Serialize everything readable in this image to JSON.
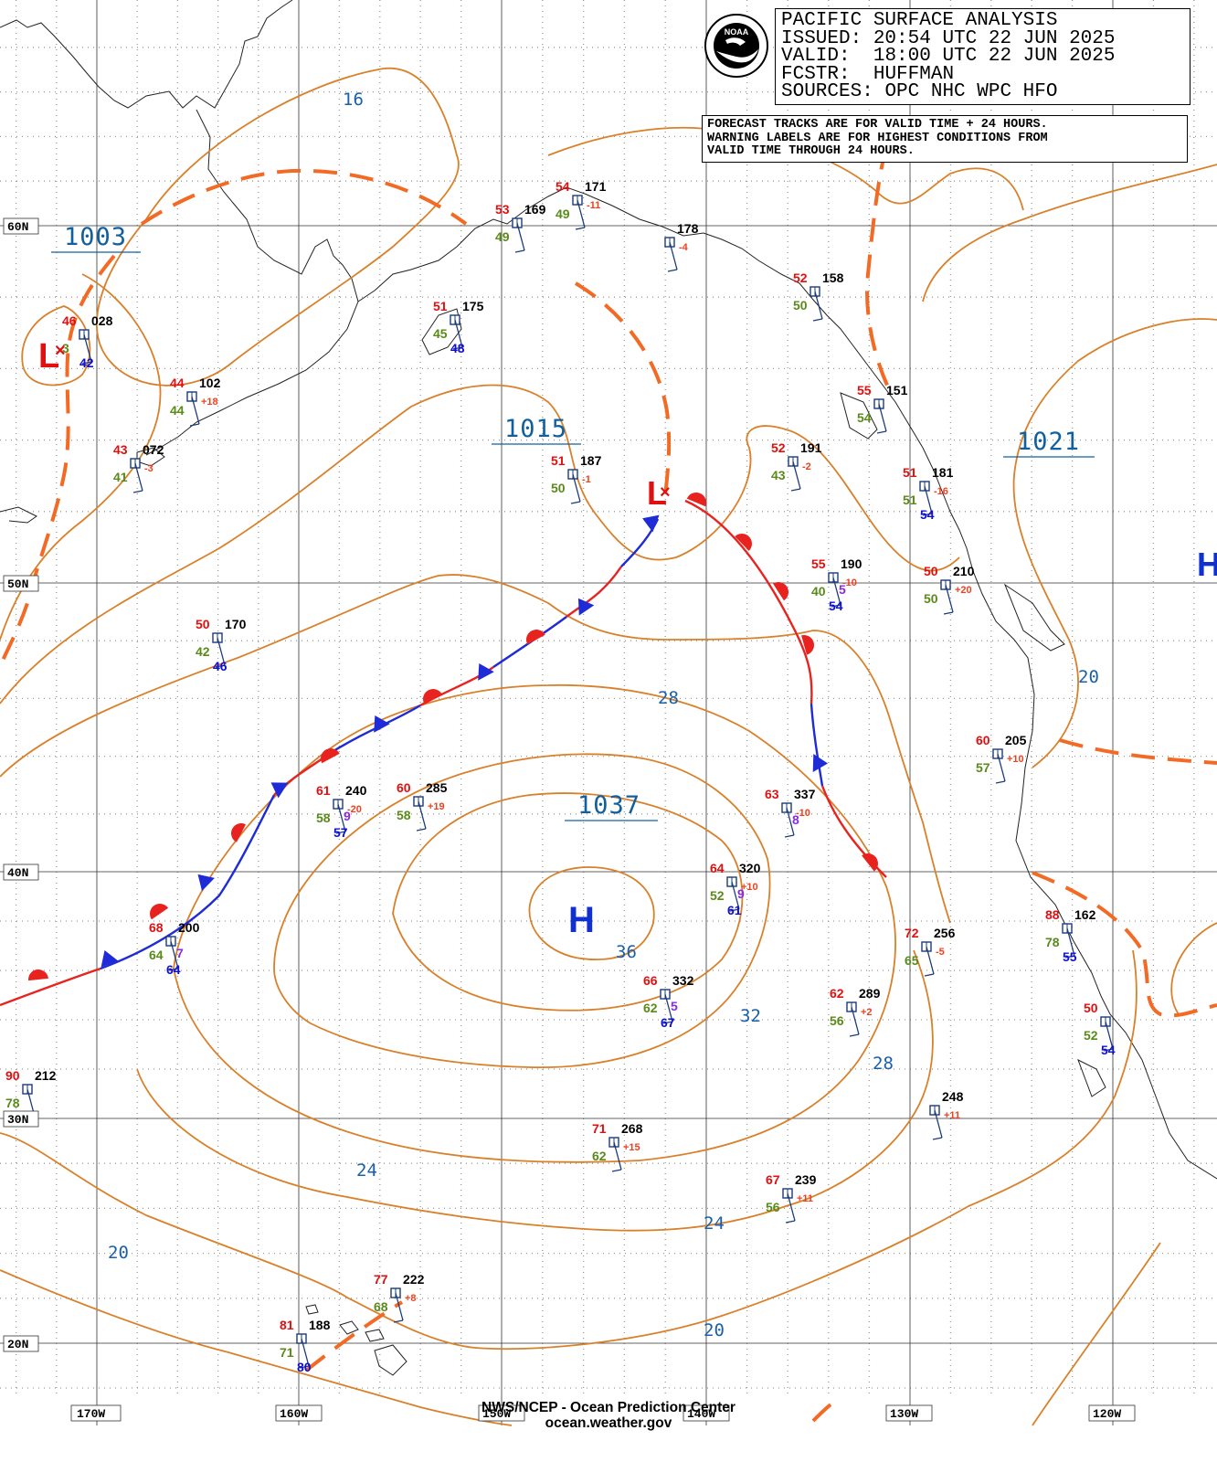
{
  "header": {
    "title": "PACIFIC SURFACE ANALYSIS",
    "issued_label": "ISSUED:",
    "issued": "20:54 UTC 22 JUN 2025",
    "valid_label": "VALID:",
    "valid": "18:00 UTC 22 JUN 2025",
    "fcstr_label": "FCSTR:",
    "fcstr": "HUFFMAN",
    "sources_label": "SOURCES:",
    "sources": "OPC NHC WPC HFO",
    "logo_text": "NOAA"
  },
  "note": {
    "line1": "FORECAST TRACKS ARE FOR VALID TIME + 24 HOURS.",
    "line2": "WARNING LABELS ARE FOR HIGHEST CONDITIONS FROM",
    "line3": "VALID TIME THROUGH 24 HOURS."
  },
  "footer": {
    "line1": "NWS/NCEP - Ocean Prediction Center",
    "line2": "ocean.weather.gov"
  },
  "latitude_labels": [
    "60N",
    "50N",
    "40N",
    "30N",
    "20N"
  ],
  "longitude_labels": [
    "170W",
    "160W",
    "150W",
    "140W",
    "130W",
    "120W"
  ],
  "pressure_centers": {
    "high_main": {
      "letter": "H",
      "value": "1037"
    },
    "high_east_letter": "H",
    "low_west": {
      "letter": "L",
      "value": "1003"
    },
    "low_gulf": {
      "letter": "L",
      "value": "1015"
    },
    "high_coast_value": "1021"
  },
  "isobar_labels": [
    "16",
    "20",
    "24",
    "28",
    "32",
    "36",
    "28",
    "24",
    "20",
    "20",
    "24",
    "28"
  ],
  "stations": [
    {
      "temp": "46",
      "pressure": "028",
      "dew": "3",
      "extra": "42"
    },
    {
      "temp": "44",
      "pressure": "102",
      "dew": "44",
      "tend": "+18"
    },
    {
      "temp": "43",
      "pressure": "072",
      "dew": "41",
      "tend": "-3"
    },
    {
      "temp": "51",
      "pressure": "175",
      "dew": "45",
      "extra": "48"
    },
    {
      "temp": "53",
      "pressure": "169",
      "dew": "49"
    },
    {
      "temp": "54",
      "pressure": "171",
      "dew": "49",
      "tend": "-11"
    },
    {
      "pressure": "178",
      "tend": "-4"
    },
    {
      "temp": "52",
      "pressure": "158",
      "dew": "50"
    },
    {
      "temp": "55",
      "pressure": "151",
      "dew": "54"
    },
    {
      "temp": "52",
      "pressure": "191",
      "dew": "43",
      "tend": "-2"
    },
    {
      "temp": "51",
      "pressure": "181",
      "dew": "51",
      "tend": "-16",
      "extra": "54"
    },
    {
      "temp": "51",
      "pressure": "187",
      "dew": "50",
      "tend": "-1"
    },
    {
      "temp": "55",
      "pressure": "190",
      "dew": "40",
      "tend": "-10",
      "extra": "54",
      "wave": "5"
    },
    {
      "temp": "50",
      "pressure": "210",
      "dew": "50",
      "tend": "+20"
    },
    {
      "temp": "50",
      "pressure": "170",
      "dew": "42",
      "extra": "46"
    },
    {
      "temp": "60",
      "pressure": "205",
      "dew": "57",
      "tend": "+10"
    },
    {
      "temp": "61",
      "pressure": "240",
      "dew": "58",
      "tend": "-20",
      "extra": "57",
      "wave": "9"
    },
    {
      "temp": "60",
      "pressure": "285",
      "dew": "58",
      "tend": "+19"
    },
    {
      "temp": "63",
      "pressure": "337",
      "tend": "-10",
      "wave": "8"
    },
    {
      "temp": "64",
      "pressure": "320",
      "dew": "52",
      "tend": "+10",
      "extra": "61",
      "wave": "9"
    },
    {
      "temp": "68",
      "pressure": "200",
      "dew": "64",
      "extra": "64",
      "wave": "7"
    },
    {
      "temp": "88",
      "pressure": "162",
      "dew": "78",
      "extra": "55"
    },
    {
      "temp": "72",
      "pressure": "256",
      "dew": "65",
      "tend": "-5"
    },
    {
      "temp": "66",
      "pressure": "332",
      "dew": "62",
      "extra": "67",
      "wave": "5"
    },
    {
      "temp": "62",
      "pressure": "289",
      "dew": "56",
      "tend": "+2"
    },
    {
      "temp": "50",
      "dew": "52",
      "extra": "54"
    },
    {
      "temp": "90",
      "pressure": "212",
      "dew": "78"
    },
    {
      "pressure": "248",
      "tend": "+11"
    },
    {
      "temp": "71",
      "pressure": "268",
      "dew": "62",
      "tend": "+15"
    },
    {
      "temp": "67",
      "pressure": "239",
      "dew": "56",
      "tend": "+11"
    },
    {
      "temp": "77",
      "pressure": "222",
      "dew": "68",
      "tend": "+8"
    },
    {
      "temp": "81",
      "pressure": "188",
      "dew": "71",
      "extra": "80"
    }
  ],
  "colors": {
    "isobar": "#d9802a",
    "trough": "#f26a24",
    "warm_front": "#e8231f",
    "cold_front": "#1f2bd6",
    "label_blue": "#1060a0",
    "temp_red": "#e01010",
    "dew_green": "#5a8a1a",
    "wave_purple": "#8a2be2",
    "swell_blue": "#1010d0"
  }
}
